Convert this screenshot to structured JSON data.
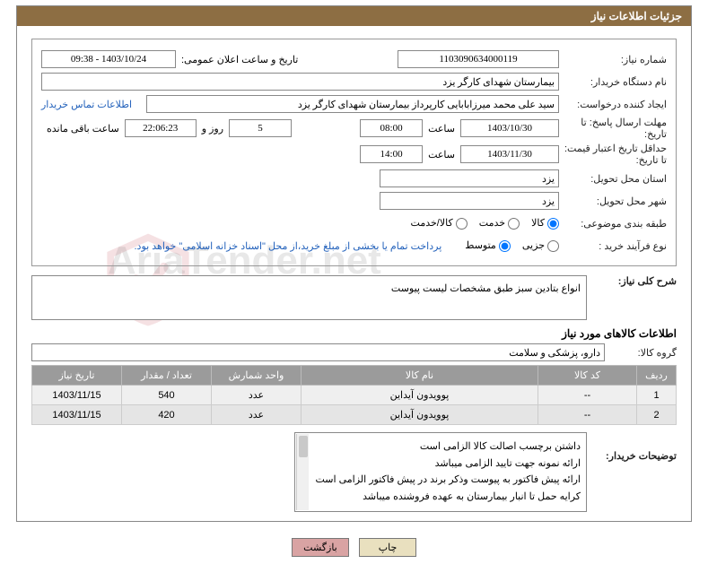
{
  "header": {
    "title": "جزئیات اطلاعات نیاز"
  },
  "need": {
    "need_number_label": "شماره نیاز:",
    "need_number": "1103090634000119",
    "announce_label": "تاریخ و ساعت اعلان عمومی:",
    "announce_value": "1403/10/24 - 09:38",
    "buyer_org_label": "نام دستگاه خریدار:",
    "buyer_org": "بیمارستان شهدای کارگر یزد",
    "requester_label": "ایجاد کننده درخواست:",
    "requester": "سید علی محمد میرزابابایی کارپرداز بیمارستان شهدای کارگر یزد",
    "buyer_contact_link": "اطلاعات تماس خریدار",
    "deadline_label": "مهلت ارسال پاسخ: تا تاریخ:",
    "deadline_date": "1403/10/30",
    "time_label": "ساعت",
    "deadline_time": "08:00",
    "days_value": "5",
    "days_and": "روز و",
    "remaining_time": "22:06:23",
    "remaining_label": "ساعت باقی مانده",
    "validity_label": "حداقل تاریخ اعتبار قیمت: تا تاریخ:",
    "validity_date": "1403/11/30",
    "validity_time": "14:00",
    "delivery_province_label": "استان محل تحویل:",
    "delivery_province": "یزد",
    "delivery_city_label": "شهر محل تحویل:",
    "delivery_city": "یزد",
    "category_label": "طبقه بندی موضوعی:",
    "cat_goods": "کالا",
    "cat_service": "خدمت",
    "cat_goods_service": "کالا/خدمت",
    "purchase_type_label": "نوع فرآیند خرید :",
    "pt_partial": "جزیی",
    "pt_medium": "متوسط",
    "purchase_note": "پرداخت تمام یا بخشی از مبلغ خرید،از محل \"اسناد خزانه اسلامی\" خواهد بود."
  },
  "summary": {
    "label": "شرح کلی نیاز:",
    "text": "انواع بتادین سبز طبق مشخصات لیست پیوست"
  },
  "goods_section_title": "اطلاعات کالاهای مورد نیاز",
  "group": {
    "label": "گروه کالا:",
    "value": "دارو، پزشکی و سلامت"
  },
  "table": {
    "columns": {
      "row": "ردیف",
      "code": "کد کالا",
      "name": "نام کالا",
      "unit": "واحد شمارش",
      "qty": "تعداد / مقدار",
      "date": "تاریخ نیاز"
    },
    "rows": [
      {
        "n": "1",
        "code": "--",
        "name": "پوویدون آیداین",
        "unit": "عدد",
        "qty": "540",
        "date": "1403/11/15"
      },
      {
        "n": "2",
        "code": "--",
        "name": "پوویدون آیداین",
        "unit": "عدد",
        "qty": "420",
        "date": "1403/11/15"
      }
    ]
  },
  "buyer_notes": {
    "label": "توضیحات خریدار:",
    "lines": [
      "داشتن برچسب اصالت کالا الزامی است",
      "ارائه نمونه جهت تایید الزامی میباشد",
      "ارائه پیش فاکتور به پیوست وذکر برند در پیش فاکتور الزامی است",
      "کرایه حمل تا انبار بیمارستان به عهده فروشنده میباشد"
    ]
  },
  "buttons": {
    "print": "چاپ",
    "back": "بازگشت"
  },
  "watermark": "AriaTender.net"
}
